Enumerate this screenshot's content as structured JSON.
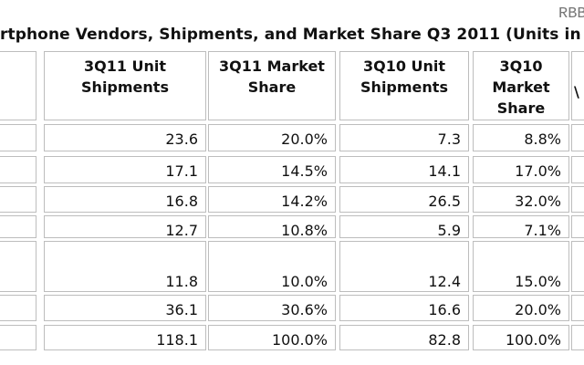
{
  "watermark": "RBB",
  "title": "rtphone Vendors, Shipments, and Market Share Q3 2011 (Units in",
  "columns": [
    "3Q11 Unit Shipments",
    "3Q11 Market Share",
    "3Q10 Unit Shipments",
    "3Q10 Market Share",
    "\\"
  ],
  "rows": [
    [
      "23.6",
      "20.0%",
      "7.3",
      "8.8%"
    ],
    [
      "17.1",
      "14.5%",
      "14.1",
      "17.0%"
    ],
    [
      "16.8",
      "14.2%",
      "26.5",
      "32.0%"
    ],
    [
      "12.7",
      "10.8%",
      "5.9",
      "7.1%"
    ],
    [
      "11.8",
      "10.0%",
      "12.4",
      "15.0%"
    ],
    [
      "36.1",
      "30.6%",
      "16.6",
      "20.0%"
    ],
    [
      "118.1",
      "100.0%",
      "82.8",
      "100.0%"
    ]
  ]
}
